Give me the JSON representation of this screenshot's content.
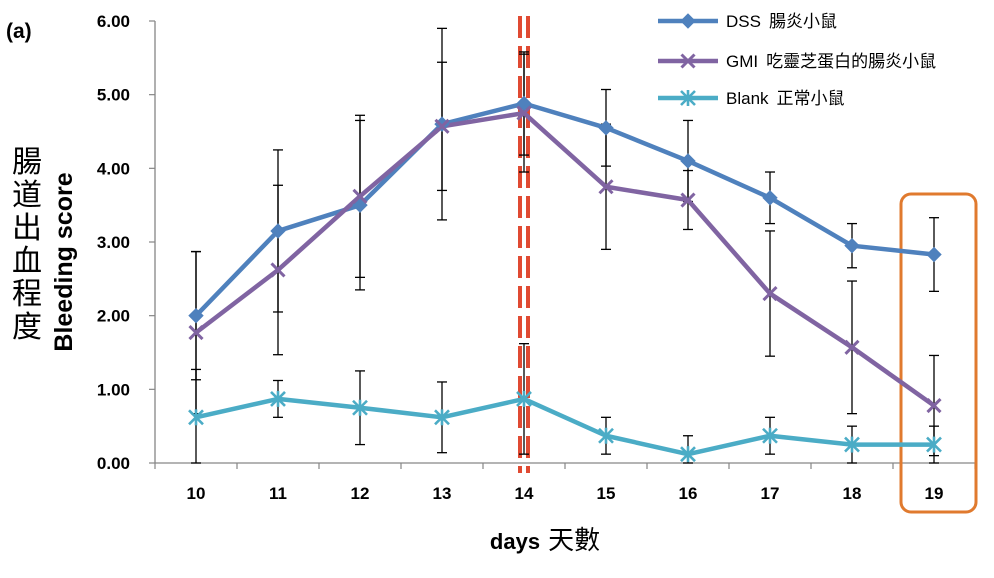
{
  "chart_data": {
    "type": "line",
    "panel_label": "(a)",
    "title": "",
    "xlabel": "days",
    "xlabel_zh": "天數",
    "ylabel": "Bleeding score",
    "ylabel_zh": "腸道出血程度",
    "categories": [
      "10",
      "11",
      "12",
      "13",
      "14",
      "15",
      "16",
      "17",
      "18",
      "19"
    ],
    "yticks": [
      "0.00",
      "1.00",
      "2.00",
      "3.00",
      "4.00",
      "5.00",
      "6.00"
    ],
    "ylim": [
      0,
      6
    ],
    "grid": false,
    "legend_position": "top-right",
    "series": [
      {
        "name": "DSS",
        "name_zh": "腸炎小鼠",
        "color": "#4f81bd",
        "marker": "diamond",
        "values": [
          2.0,
          3.15,
          3.5,
          4.6,
          4.88,
          4.55,
          4.1,
          3.6,
          2.95,
          2.83
        ],
        "errors": [
          0.87,
          1.1,
          1.15,
          1.3,
          0.7,
          0.52,
          0.55,
          0.35,
          0.3,
          0.5
        ]
      },
      {
        "name": "GMI",
        "name_zh": "吃靈芝蛋白的腸炎小鼠",
        "color": "#8064a2",
        "marker": "x",
        "values": [
          1.77,
          2.62,
          3.62,
          4.57,
          4.75,
          3.75,
          3.57,
          2.3,
          1.57,
          0.78
        ],
        "errors": [
          1.1,
          1.15,
          1.1,
          0.87,
          0.8,
          0.85,
          0.4,
          0.85,
          0.9,
          0.68
        ]
      },
      {
        "name": "Blank",
        "name_zh": "正常小鼠",
        "color": "#4bacc6",
        "marker": "star",
        "values": [
          0.62,
          0.87,
          0.75,
          0.62,
          0.87,
          0.37,
          0.12,
          0.37,
          0.25,
          0.25
        ],
        "errors": [
          0.65,
          0.25,
          0.5,
          0.48,
          0.75,
          0.25,
          0.25,
          0.25,
          0.25,
          0.25
        ]
      }
    ],
    "annotations": {
      "dashed_line_day": "14",
      "dashed_line_color": "#e04a32",
      "highlight_day": "19",
      "highlight_color": "#e07a2e"
    }
  }
}
